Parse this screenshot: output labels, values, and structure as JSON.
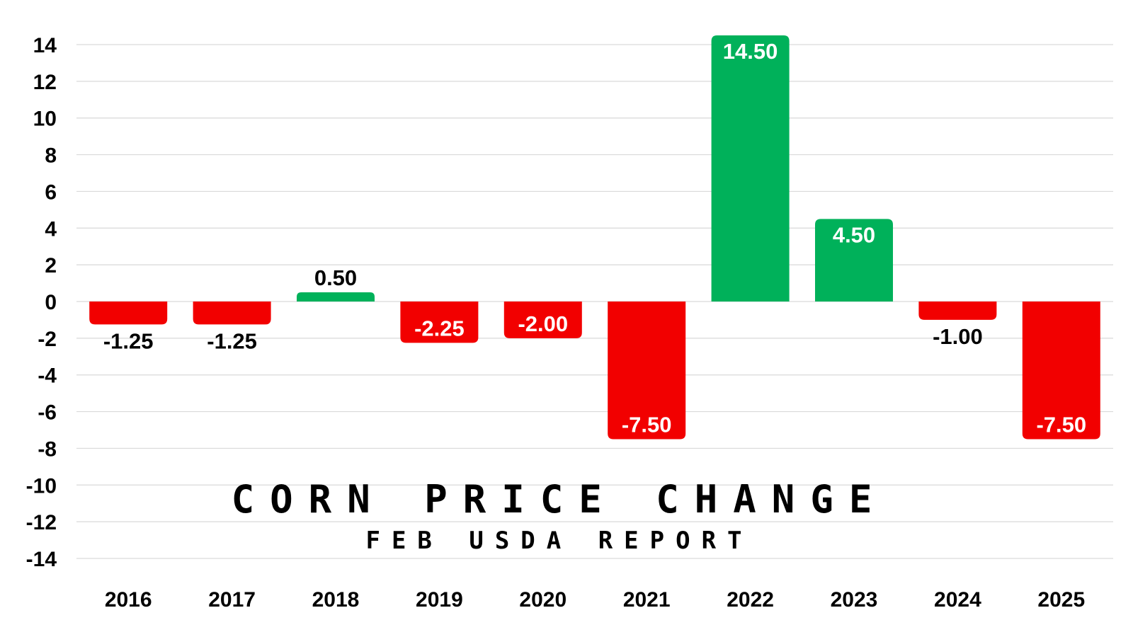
{
  "colors": {
    "positive": "#00b15a",
    "negative": "#f20000",
    "grid": "#d9d9d9",
    "label_dark": "#000000",
    "label_light": "#ffffff"
  },
  "chart_data": {
    "type": "bar",
    "title": "CORN PRICE CHANGE",
    "subtitle": "FEB USDA REPORT",
    "xlabel": "",
    "ylabel": "",
    "categories": [
      "2016",
      "2017",
      "2018",
      "2019",
      "2020",
      "2021",
      "2022",
      "2023",
      "2024",
      "2025"
    ],
    "values": [
      -1.25,
      -1.25,
      0.5,
      -2.25,
      -2.0,
      -7.5,
      14.5,
      4.5,
      -1.0,
      -7.5
    ],
    "value_labels": [
      "-1.25",
      "-1.25",
      "0.50",
      "-2.25",
      "-2.00",
      "-7.50",
      "14.50",
      "4.50",
      "-1.00",
      "-7.50"
    ],
    "ylim": [
      -14,
      14
    ],
    "yticks": [
      14,
      12,
      10,
      8,
      6,
      4,
      2,
      0,
      -2,
      -4,
      -6,
      -8,
      -10,
      -12,
      -14
    ],
    "ytick_labels": [
      "14",
      "12",
      "10",
      "8",
      "6",
      "4",
      "2",
      "0",
      "-2",
      "-4",
      "-6",
      "-8",
      "-10",
      "-12",
      "-14"
    ],
    "grid": true,
    "legend": "none"
  }
}
